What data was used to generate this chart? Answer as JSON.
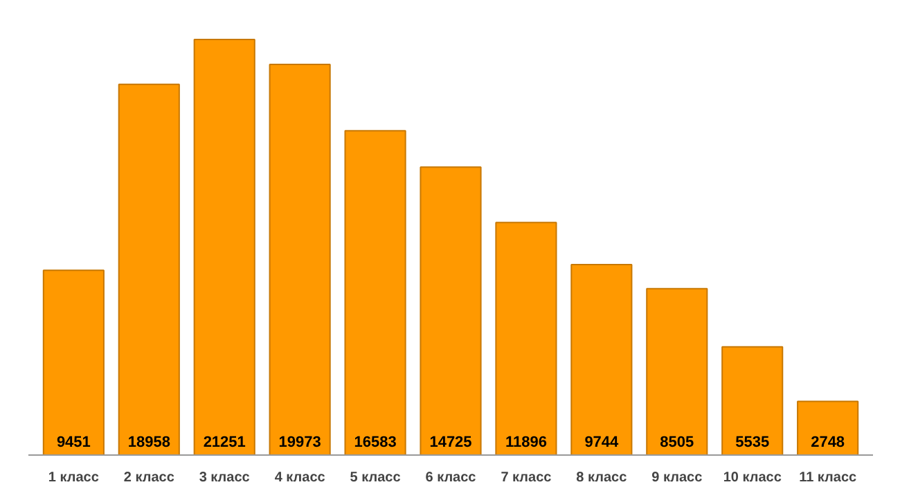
{
  "chart_data": {
    "type": "bar",
    "categories": [
      "1 класс",
      "2 класс",
      "3 класс",
      "4 класс",
      "5 класс",
      "6 класс",
      "7 класс",
      "8 класс",
      "9 класс",
      "10 класс",
      "11 класс"
    ],
    "values": [
      9451,
      18958,
      21251,
      19973,
      16583,
      14725,
      11896,
      9744,
      8505,
      5535,
      2748
    ],
    "color": "#ff9900",
    "data_labels": true
  }
}
